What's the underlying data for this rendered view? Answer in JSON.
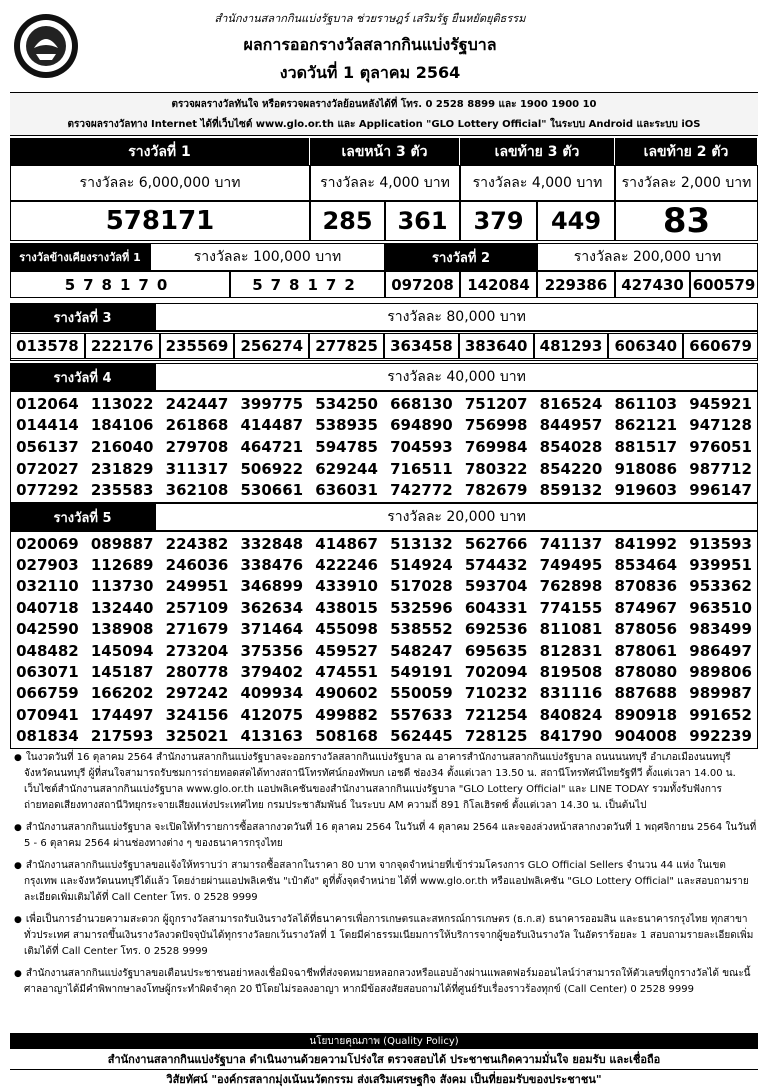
{
  "header": {
    "agency": "สำนักงานสลากกินแบ่งรัฐบาล  ช่วยราษฎร์  เสริมรัฐ  ยืนหยัดยุติธรรม",
    "title": "ผลการออกรางวัลสลากกินแบ่งรัฐบาล",
    "draw_date": "งวดวันที่ 1 ตุลาคม 2564"
  },
  "info": [
    "ตรวจผลรางวัลทันใจ  หรือตรวจผลรางวัลย้อนหลังได้ที่  โทร. 0 2528 8899 และ 1900 1900 10",
    "ตรวจผลรางวัลทาง Internet ได้ที่เว็บไซต์  www.glo.or.th และ Application \"GLO Lottery Official\" ในระบบ Android และระบบ iOS"
  ],
  "first_table": {
    "headers": [
      "รางวัลที่ 1",
      "เลขหน้า 3 ตัว",
      "เลขท้าย 3 ตัว",
      "เลขท้าย 2 ตัว"
    ],
    "amounts": [
      "รางวัลละ  6,000,000 บาท",
      "รางวัลละ  4,000 บาท",
      "รางวัลละ  4,000 บาท",
      "รางวัลละ  2,000 บาท"
    ],
    "first_prize": "578171",
    "front_three": [
      "285",
      "361"
    ],
    "back_three": [
      "379",
      "449"
    ],
    "last_two": "83"
  },
  "adjacent": {
    "label": "รางวัลข้างเคียงรางวัลที่ 1",
    "amount": "รางวัลละ 100,000 บาท",
    "numbers": [
      "578170",
      "578172"
    ]
  },
  "prize2": {
    "label": "รางวัลที่  2",
    "amount": "รางวัลละ 200,000 บาท",
    "numbers": [
      "097208",
      "142084",
      "229386",
      "427430",
      "600579"
    ]
  },
  "prize3": {
    "label": "รางวัลที่  3",
    "amount": "รางวัลละ  80,000 บาท",
    "numbers": [
      "013578",
      "222176",
      "235569",
      "256274",
      "277825",
      "363458",
      "383640",
      "481293",
      "606340",
      "660679"
    ]
  },
  "prize4": {
    "label": "รางวัลที่  4",
    "amount": "รางวัลละ  40,000 บาท",
    "rows": [
      [
        "012064",
        "113022",
        "242447",
        "399775",
        "534250",
        "668130",
        "751207",
        "816524",
        "861103",
        "945921"
      ],
      [
        "014414",
        "184106",
        "261868",
        "414487",
        "538935",
        "694890",
        "756998",
        "844957",
        "862121",
        "947128"
      ],
      [
        "056137",
        "216040",
        "279708",
        "464721",
        "594785",
        "704593",
        "769984",
        "854028",
        "881517",
        "976051"
      ],
      [
        "072027",
        "231829",
        "311317",
        "506922",
        "629244",
        "716511",
        "780322",
        "854220",
        "918086",
        "987712"
      ],
      [
        "077292",
        "235583",
        "362108",
        "530661",
        "636031",
        "742772",
        "782679",
        "859132",
        "919603",
        "996147"
      ]
    ]
  },
  "prize5": {
    "label": "รางวัลที่  5",
    "amount": "รางวัลละ  20,000 บาท",
    "rows": [
      [
        "020069",
        "089887",
        "224382",
        "332848",
        "414867",
        "513132",
        "562766",
        "741137",
        "841992",
        "913593"
      ],
      [
        "027903",
        "112689",
        "246036",
        "338476",
        "422246",
        "514924",
        "574432",
        "749495",
        "853464",
        "939951"
      ],
      [
        "032110",
        "113730",
        "249951",
        "346899",
        "433910",
        "517028",
        "593704",
        "762898",
        "870836",
        "953362"
      ],
      [
        "040718",
        "132440",
        "257109",
        "362634",
        "438015",
        "532596",
        "604331",
        "774155",
        "874967",
        "963510"
      ],
      [
        "042590",
        "138908",
        "271679",
        "371464",
        "455098",
        "538552",
        "692536",
        "811081",
        "878056",
        "983499"
      ],
      [
        "048482",
        "145094",
        "273204",
        "375356",
        "459527",
        "548247",
        "695635",
        "812831",
        "878061",
        "986497"
      ],
      [
        "063071",
        "145187",
        "280778",
        "379402",
        "474551",
        "549191",
        "702094",
        "819508",
        "878080",
        "989806"
      ],
      [
        "066759",
        "166202",
        "297242",
        "409934",
        "490602",
        "550059",
        "710232",
        "831116",
        "887688",
        "989987"
      ],
      [
        "070941",
        "174497",
        "324156",
        "412075",
        "499882",
        "557633",
        "721254",
        "840824",
        "890918",
        "991652"
      ],
      [
        "081834",
        "217593",
        "325021",
        "413163",
        "508168",
        "562445",
        "728125",
        "841790",
        "904008",
        "992239"
      ]
    ]
  },
  "notes": [
    "ในงวดวันที่ 16 ตุลาคม 2564 สำนักงานสลากกินแบ่งรัฐบาลจะออกรางวัลสลากกินแบ่งรัฐบาล ณ อาคารสำนักงานสลากกินแบ่งรัฐบาล ถนนนนทบุรี อำเภอเมืองนนทบุรี จังหวัดนนทบุรี ผู้ที่สนใจสามารถรับชมการถ่ายทอดสดได้ทางสถานีโทรทัศน์กองทัพบก เอชดี ช่อง34 ตั้งแต่เวลา 13.50 น. สถานีโทรทัศน์ไทยรัฐทีวี ตั้งแต่เวลา 14.00 น. เว็บไซต์สำนักงานสลากกินแบ่งรัฐบาล www.glo.or.th แอปพลิเคชันของสำนักงานสลากกินแบ่งรัฐบาล \"GLO Lottery Official\" และ LINE TODAY รวมทั้งรับฟังการถ่ายทอดเสียงทางสถานีวิทยุกระจายเสียงแห่งประเทศไทย  กรมประชาสัมพันธ์ ในระบบ AM ความถี่ 891 กิโลเฮิรตซ์  ตั้งแต่เวลา 14.30 น. เป็นต้นไป",
    "สำนักงานสลากกินแบ่งรัฐบาล จะเปิดให้ทำรายการซื้อสลากงวดวันที่ 16 ตุลาคม 2564 ในวันที่ 4 ตุลาคม 2564 และจองล่วงหน้าสลากงวดวันที่ 1 พฤศจิกายน 2564 ในวันที่ 5 - 6 ตุลาคม 2564 ผ่านช่องทางต่าง ๆ ของธนาคารกรุงไทย",
    "สำนักงานสลากกินแบ่งรัฐบาลขอแจ้งให้ทราบว่า สามารถซื้อสลากในราคา 80 บาท จากจุดจำหน่ายที่เข้าร่วมโครงการ GLO Official Sellers จำนวน 44 แห่ง ในเขตกรุงเทพ และจังหวัดนนทบุรีได้แล้ว โดยง่ายผ่านแอปพลิเคชัน \"เป๋าตัง\" ดูที่ตั้งจุดจำหน่าย ได้ที่ www.glo.or.th หรือแอปพลิเคชัน \"GLO Lottery Official\" และสอบถามรายละเอียดเพิ่มเติมได้ที่ Call Center โทร. 0 2528 9999",
    "เพื่อเป็นการอำนวยความสะดวก ผู้ถูกรางวัลสามารถรับเงินรางวัลได้ที่ธนาคารเพื่อการเกษตรและสหกรณ์การเกษตร (ธ.ก.ส) ธนาคารออมสิน และธนาคารกรุงไทย ทุกสาขาทั่วประเทศ สามารถขึ้นเงินรางวัลงวดปัจจุบันได้ทุกรางวัลยกเว้นรางวัลที่ 1 โดยมีค่าธรรมเนียมการให้บริการจากผู้ขอรับเงินรางวัล ในอัตราร้อยละ 1 สอบถามรายละเอียดเพิ่มเติมได้ที่  Call Center โทร. 0 2528 9999",
    "สำนักงานสลากกินแบ่งรัฐบาลขอเตือนประชาชนอย่าหลงเชื่อมิจฉาชีพที่ส่งจดหมายหลอกลวงหรือแอบอ้างผ่านแพลตฟอร์มออนไลน์ว่าสามารถให้ตัวเลขที่ถูกรางวัลได้ ขณะนี้ศาลอาญาได้มีคำพิพากษาลงโทษผู้กระทำผิดจำคุก 20 ปีโดยไม่รอลงอาญา หากมีข้อสงสัยสอบถามได้ที่ศูนย์รับเรื่องราวร้องทุกข์ (Call Center) 0 2528 9999"
  ],
  "quality": {
    "title": "นโยบายคุณภาพ (Quality Policy)",
    "policy": "สำนักงานสลากกินแบ่งรัฐบาล ดำเนินงานด้วยความโปร่งใส ตรวจสอบได้ ประชาชนเกิดความมั่นใจ ยอมรับ และเชื่อถือ",
    "vision": "วิสัยทัศน์ \"องค์กรสลากมุ่งเน้นนวัตกรรม ส่งเสริมเศรษฐกิจ สังคม เป็นที่ยอมรับของประชาชน\""
  }
}
